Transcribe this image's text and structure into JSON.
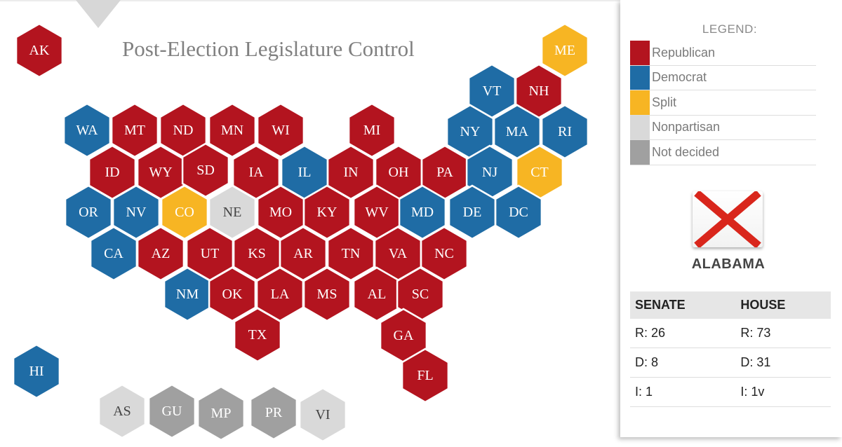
{
  "title": "Post-Election Legislature Control",
  "colors": {
    "republican": "#B3141F",
    "democrat": "#1F6CA5",
    "split": "#F7B523",
    "nonpartisan": "#D9D9D9",
    "not_decided": "#A0A0A0"
  },
  "legend": {
    "title": "LEGEND:",
    "items": [
      {
        "label": "Republican",
        "key": "republican"
      },
      {
        "label": "Democrat",
        "key": "democrat"
      },
      {
        "label": "Split",
        "key": "split"
      },
      {
        "label": "Nonpartisan",
        "key": "nonpartisan"
      },
      {
        "label": "Not decided",
        "key": "not_decided"
      }
    ]
  },
  "selected": {
    "flag_icon": "x-flag-icon",
    "name": "ALABAMA",
    "senate_header": "SENATE",
    "house_header": "HOUSE",
    "senate": [
      "R: 26",
      "D: 8",
      "I: 1"
    ],
    "house": [
      "R: 73",
      "D: 31",
      "I: 1v"
    ]
  },
  "states": [
    {
      "abbr": "AK",
      "control": "republican"
    },
    {
      "abbr": "ME",
      "control": "split"
    },
    {
      "abbr": "VT",
      "control": "democrat"
    },
    {
      "abbr": "NH",
      "control": "republican"
    },
    {
      "abbr": "WA",
      "control": "democrat"
    },
    {
      "abbr": "MT",
      "control": "republican"
    },
    {
      "abbr": "ND",
      "control": "republican"
    },
    {
      "abbr": "MN",
      "control": "republican"
    },
    {
      "abbr": "WI",
      "control": "republican"
    },
    {
      "abbr": "MI",
      "control": "republican"
    },
    {
      "abbr": "NY",
      "control": "democrat"
    },
    {
      "abbr": "MA",
      "control": "democrat"
    },
    {
      "abbr": "RI",
      "control": "democrat"
    },
    {
      "abbr": "ID",
      "control": "republican"
    },
    {
      "abbr": "WY",
      "control": "republican"
    },
    {
      "abbr": "SD",
      "control": "republican"
    },
    {
      "abbr": "IA",
      "control": "republican"
    },
    {
      "abbr": "IL",
      "control": "democrat"
    },
    {
      "abbr": "IN",
      "control": "republican"
    },
    {
      "abbr": "OH",
      "control": "republican"
    },
    {
      "abbr": "PA",
      "control": "republican"
    },
    {
      "abbr": "NJ",
      "control": "democrat"
    },
    {
      "abbr": "CT",
      "control": "split"
    },
    {
      "abbr": "OR",
      "control": "democrat"
    },
    {
      "abbr": "NV",
      "control": "democrat"
    },
    {
      "abbr": "CO",
      "control": "split"
    },
    {
      "abbr": "NE",
      "control": "nonpartisan"
    },
    {
      "abbr": "MO",
      "control": "republican"
    },
    {
      "abbr": "KY",
      "control": "republican"
    },
    {
      "abbr": "WV",
      "control": "republican"
    },
    {
      "abbr": "MD",
      "control": "democrat"
    },
    {
      "abbr": "DE",
      "control": "democrat"
    },
    {
      "abbr": "DC",
      "control": "democrat"
    },
    {
      "abbr": "CA",
      "control": "democrat"
    },
    {
      "abbr": "AZ",
      "control": "republican"
    },
    {
      "abbr": "UT",
      "control": "republican"
    },
    {
      "abbr": "KS",
      "control": "republican"
    },
    {
      "abbr": "AR",
      "control": "republican"
    },
    {
      "abbr": "TN",
      "control": "republican"
    },
    {
      "abbr": "VA",
      "control": "republican"
    },
    {
      "abbr": "NC",
      "control": "republican"
    },
    {
      "abbr": "NM",
      "control": "democrat"
    },
    {
      "abbr": "OK",
      "control": "republican"
    },
    {
      "abbr": "LA",
      "control": "republican"
    },
    {
      "abbr": "MS",
      "control": "republican"
    },
    {
      "abbr": "AL",
      "control": "republican"
    },
    {
      "abbr": "SC",
      "control": "republican"
    },
    {
      "abbr": "TX",
      "control": "republican"
    },
    {
      "abbr": "GA",
      "control": "republican"
    },
    {
      "abbr": "FL",
      "control": "republican"
    },
    {
      "abbr": "HI",
      "control": "democrat"
    },
    {
      "abbr": "AS",
      "control": "nonpartisan"
    },
    {
      "abbr": "GU",
      "control": "not_decided"
    },
    {
      "abbr": "MP",
      "control": "not_decided"
    },
    {
      "abbr": "PR",
      "control": "not_decided"
    },
    {
      "abbr": "VI",
      "control": "nonpartisan"
    }
  ]
}
